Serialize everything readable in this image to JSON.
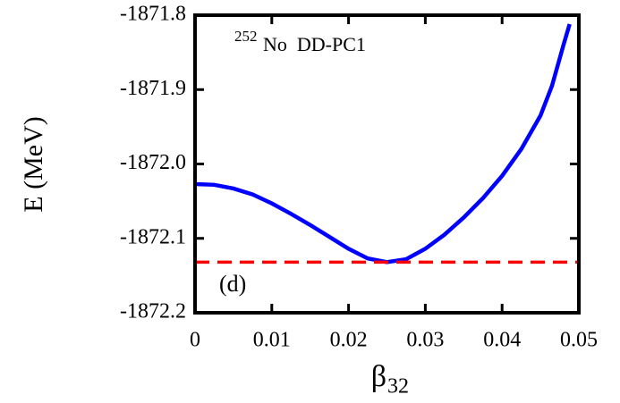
{
  "chart_data": {
    "type": "line",
    "ylabel": "E (MeV)",
    "xlabel": "β",
    "xlabel_sub": "32",
    "annotation_sup": "252",
    "annotation": "No  DD-PC1",
    "panel_label": "(d)",
    "xlim": [
      0,
      0.05
    ],
    "xticks": [
      0,
      0.01,
      0.02,
      0.03,
      0.04,
      0.05
    ],
    "ylim": [
      -1872.2,
      -1871.8
    ],
    "yticks": [
      {
        "value": -1872.2,
        "label": "-1872.2"
      },
      {
        "value": -1872.1,
        "label": "-1872.1"
      },
      {
        "value": -1872,
        "label": "-1872.0"
      },
      {
        "value": -1871.9,
        "label": "-1871.9"
      },
      -1871.8
    ],
    "series": [
      {
        "color": "#0000ff",
        "style": "solid",
        "x": [
          0,
          0.0025,
          0.005,
          0.0075,
          0.01,
          0.0125,
          0.015,
          0.0175,
          0.02,
          0.0225,
          0.025,
          0.0275,
          0.03,
          0.0325,
          0.035,
          0.0375,
          0.04,
          0.0425,
          0.045,
          0.0465,
          0.048,
          0.0488
        ],
        "values": [
          -1872.027,
          -1872.028,
          -1872.033,
          -1872.041,
          -1872.053,
          -1872.067,
          -1872.082,
          -1872.098,
          -1872.114,
          -1872.127,
          -1872.132,
          -1872.128,
          -1872.114,
          -1872.095,
          -1872.072,
          -1872.046,
          -1872.016,
          -1871.98,
          -1871.935,
          -1871.895,
          -1871.84,
          -1871.812
        ]
      },
      {
        "color": "#ff0000",
        "style": "dashed",
        "x": [
          0,
          0.05
        ],
        "values": [
          -1872.132,
          -1872.132
        ]
      }
    ]
  }
}
